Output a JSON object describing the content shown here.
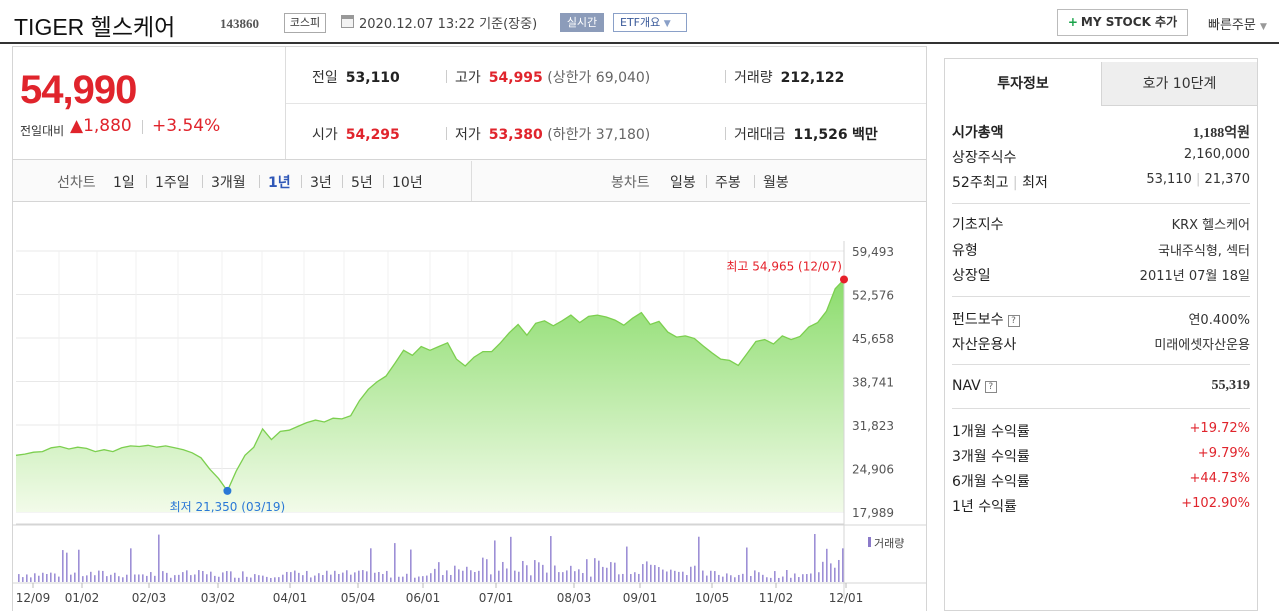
{
  "header": {
    "title": "TIGER 헬스케어",
    "code": "143860",
    "market": "코스피",
    "datetime": "2020.12.07 13:22  기준(장중)",
    "live_badge": "실시간",
    "etf_label": "ETF개요",
    "mystock_label": "MY STOCK 추가",
    "quick_order": "빠른주문"
  },
  "price": {
    "current": "54,990",
    "change_label": "전일대비",
    "change_amount": "1,880",
    "change_pct": "+3.54%",
    "up_color": "#e0242c"
  },
  "stats": {
    "prev_close": {
      "label": "전일",
      "value": "53,110"
    },
    "high": {
      "label": "고가",
      "value": "54,995",
      "sub": "(상한가 69,040)"
    },
    "volume": {
      "label": "거래량",
      "value": "212,122"
    },
    "open": {
      "label": "시가",
      "value": "54,295"
    },
    "low": {
      "label": "저가",
      "value": "53,380",
      "sub": "(하한가 37,180)"
    },
    "amount": {
      "label": "거래대금",
      "value": "11,526",
      "unit": "백만"
    }
  },
  "period_bar": {
    "line_label": "선차트",
    "line_periods": [
      "1일",
      "1주일",
      "3개월",
      "1년",
      "3년",
      "5년",
      "10년"
    ],
    "active": "1년",
    "candle_label": "봉차트",
    "candle_periods": [
      "일봉",
      "주봉",
      "월봉"
    ]
  },
  "chart_data": {
    "type": "area",
    "y_ticks": [
      "59,493",
      "52,576",
      "45,658",
      "38,741",
      "31,823",
      "24,906",
      "17,989"
    ],
    "ylim": [
      17989,
      59493
    ],
    "x_ticks": [
      "12/09",
      "01/02",
      "02/03",
      "03/02",
      "04/01",
      "05/04",
      "06/01",
      "07/01",
      "08/03",
      "09/01",
      "10/05",
      "11/02",
      "12/01"
    ],
    "high_label": "최고 54,965 (12/07)",
    "low_label": "최저 21,350 (03/19)",
    "volume_legend": "거래량",
    "series": [
      {
        "values": [
          27000,
          27200,
          27500,
          27600,
          28200,
          28400,
          28000,
          28300,
          28100,
          27600,
          27900,
          27600,
          28200,
          28500,
          28400,
          28600,
          28300,
          28500,
          28200,
          27900,
          27400,
          26600,
          24800,
          23300,
          21350,
          24500,
          27000,
          28300,
          31200,
          29500,
          30800,
          31000,
          31600,
          32200,
          32600,
          32300,
          32900,
          32800,
          33300,
          35700,
          37500,
          38700,
          39600,
          41600,
          43700,
          42900,
          44300,
          43700,
          44300,
          44900,
          42300,
          41200,
          42600,
          43500,
          43500,
          44900,
          46500,
          47800,
          46100,
          48000,
          48400,
          47600,
          48400,
          49300,
          48100,
          49100,
          49300,
          49000,
          48500,
          47700,
          48800,
          49700,
          47800,
          48300,
          46600,
          45800,
          46000,
          45600,
          44400,
          43300,
          42300,
          42100,
          41300,
          43200,
          45100,
          45400,
          44700,
          46000,
          45400,
          45900,
          47400,
          48100,
          49900,
          53500,
          54965
        ]
      }
    ],
    "area_color": "#8bdc6c"
  },
  "right_panel": {
    "tabs": [
      "투자정보",
      "호가 10단계"
    ],
    "market_cap": {
      "label": "시가총액",
      "value": "1,188억원"
    },
    "shares": {
      "label": "상장주식수",
      "value": "2,160,000"
    },
    "w52": {
      "label": "52주최고",
      "label2": "최저",
      "value": "53,110",
      "value2": "21,370"
    },
    "index": {
      "label": "기초지수",
      "value": "KRX 헬스케어"
    },
    "type": {
      "label": "유형",
      "value": "국내주식형, 섹터"
    },
    "listed": {
      "label": "상장일",
      "value": "2011년 07월 18일"
    },
    "fee": {
      "label": "펀드보수",
      "value": "연0.400%"
    },
    "manager": {
      "label": "자산운용사",
      "value": "미래에셋자산운용"
    },
    "nav": {
      "label": "NAV",
      "value": "55,319"
    },
    "returns": [
      {
        "label": "1개월 수익률",
        "value": "+19.72%"
      },
      {
        "label": "3개월 수익률",
        "value": "+9.79%"
      },
      {
        "label": "6개월 수익률",
        "value": "+44.73%"
      },
      {
        "label": "1년 수익률",
        "value": "+102.90%"
      }
    ]
  }
}
